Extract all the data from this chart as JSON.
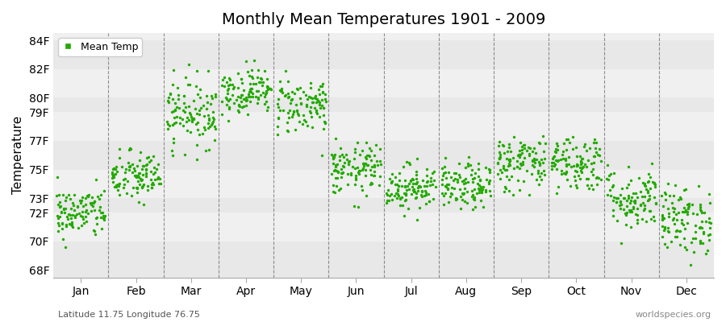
{
  "title": "Monthly Mean Temperatures 1901 - 2009",
  "ylabel": "Temperature",
  "xlabel_bottom_left": "Latitude 11.75 Longitude 76.75",
  "xlabel_bottom_right": "worldspecies.org",
  "ytick_labels": [
    "68F",
    "70F",
    "72F",
    "73F",
    "75F",
    "77F",
    "79F",
    "80F",
    "82F",
    "84F"
  ],
  "ytick_values": [
    68,
    70,
    72,
    73,
    75,
    77,
    79,
    80,
    82,
    84
  ],
  "ylim": [
    67.5,
    84.5
  ],
  "months": [
    "Jan",
    "Feb",
    "Mar",
    "Apr",
    "May",
    "Jun",
    "Jul",
    "Aug",
    "Sep",
    "Oct",
    "Nov",
    "Dec"
  ],
  "dot_color": "#22aa00",
  "dot_size": 6,
  "background_color": "#ffffff",
  "band_colors": [
    "#e8e8e8",
    "#f0f0f0"
  ],
  "grid_color": "#666666",
  "title_fontsize": 14,
  "axis_fontsize": 11,
  "tick_fontsize": 10,
  "n_years": 109,
  "monthly_means": [
    72.0,
    74.5,
    79.0,
    80.5,
    79.5,
    75.0,
    73.8,
    73.8,
    75.5,
    75.5,
    73.0,
    71.5
  ],
  "monthly_stds": [
    0.9,
    0.9,
    1.2,
    0.8,
    1.0,
    0.9,
    0.8,
    0.8,
    1.0,
    1.0,
    1.1,
    1.2
  ],
  "seed": 42
}
